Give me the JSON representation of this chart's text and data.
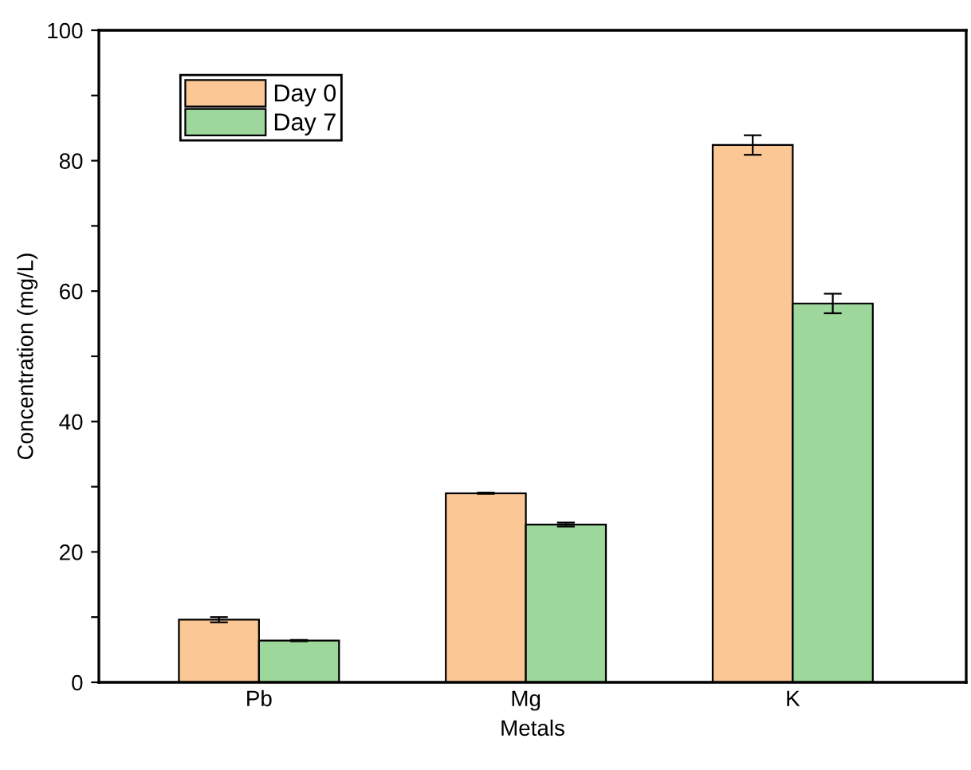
{
  "chart_data": {
    "type": "bar",
    "xlabel": "Metals",
    "ylabel": "Concentration (mg/L)",
    "categories": [
      "Pb",
      "Mg",
      "K"
    ],
    "series": [
      {
        "name": "Day 0",
        "color": "#fbc795",
        "values": [
          9.6,
          29.0,
          82.4
        ],
        "errors": [
          0.4,
          0.1,
          1.5
        ]
      },
      {
        "name": "Day 7",
        "color": "#9dd79b",
        "values": [
          6.4,
          24.2,
          58.1
        ],
        "errors": [
          0.1,
          0.3,
          1.5
        ]
      }
    ],
    "ylim": [
      0,
      100
    ],
    "yticks": [
      0,
      {
        "value": 10,
        "label": null
      },
      20,
      {
        "value": 30,
        "label": null
      },
      40,
      {
        "value": 50,
        "label": null
      },
      60,
      {
        "value": 70,
        "label": null
      },
      80,
      {
        "value": 90,
        "label": null
      },
      100
    ],
    "legend": "top left",
    "grid": false
  }
}
